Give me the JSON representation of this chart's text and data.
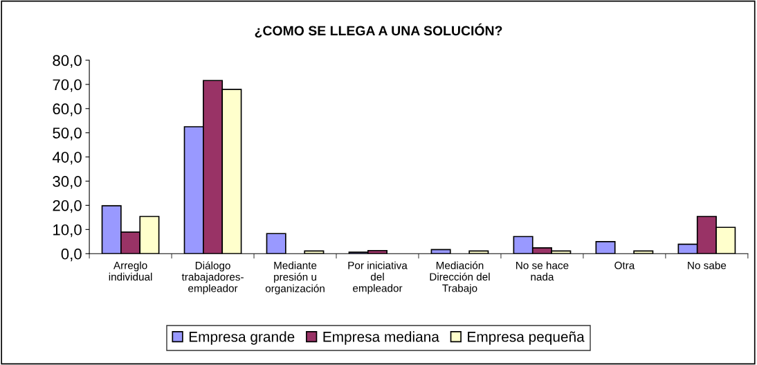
{
  "chart_data": {
    "type": "bar",
    "title": "¿COMO SE LLEGA A UNA SOLUCIÓN?",
    "categories": [
      "Arreglo\nindividual",
      "Diálogo\ntrabajadores-\nempleador",
      "Mediante\npresión u\norganización",
      "Por iniciativa\ndel\nempleador",
      "Mediación\nDirección del\nTrabajo",
      "No se hace\nnada",
      "Otra",
      "No sabe"
    ],
    "series": [
      {
        "name": "Empresa grande",
        "color": "#9999ff",
        "values": [
          19.8,
          52.5,
          8.3,
          0.6,
          1.7,
          7.1,
          5.0,
          3.9
        ]
      },
      {
        "name": "Empresa mediana",
        "color": "#993366",
        "values": [
          8.9,
          71.6,
          null,
          1.3,
          null,
          2.4,
          null,
          15.4
        ]
      },
      {
        "name": "Empresa pequeña",
        "color": "#ffffcc",
        "values": [
          15.4,
          67.9,
          1.1,
          null,
          1.1,
          1.1,
          1.1,
          10.9
        ]
      }
    ],
    "ylim": [
      0,
      80
    ],
    "yticks": [
      {
        "value": 0,
        "label": "0,0"
      },
      {
        "value": 10,
        "label": "10,0"
      },
      {
        "value": 20,
        "label": "20,0"
      },
      {
        "value": 30,
        "label": "30,0"
      },
      {
        "value": 40,
        "label": "40,0"
      },
      {
        "value": 50,
        "label": "50,0"
      },
      {
        "value": 60,
        "label": "60,0"
      },
      {
        "value": 70,
        "label": "70,0"
      },
      {
        "value": 80,
        "label": "80,0"
      }
    ],
    "grid": false,
    "legend": "bottom"
  }
}
